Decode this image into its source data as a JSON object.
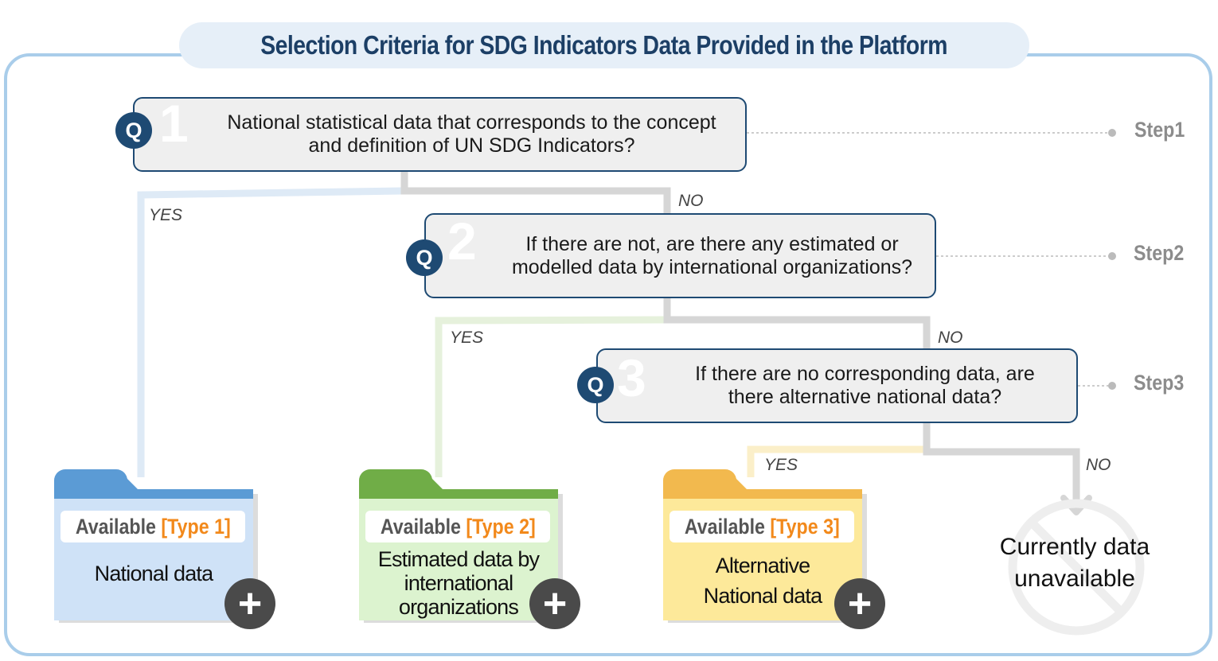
{
  "title": "Selection Criteria for SDG Indicators Data Provided in the Platform",
  "colors": {
    "frame": "#a9cdea",
    "title_bg": "#e6eff8",
    "title_text": "#1c3f66",
    "question_border": "#1e4a73",
    "type1": "#5b9bd5",
    "type2": "#70ad47",
    "type3": "#f2b94e",
    "accent": "#f2891b"
  },
  "questions": [
    {
      "badge": "Q",
      "number": "1",
      "text": "National statistical data that corresponds to the concept and definition of UN SDG Indicators?",
      "step": "Step1"
    },
    {
      "badge": "Q",
      "number": "2",
      "text": "If there are not, are there any estimated or modelled data by international organizations?",
      "step": "Step2"
    },
    {
      "badge": "Q",
      "number": "3",
      "text": "If there are no corresponding data, are there alternative national data?",
      "step": "Step3"
    }
  ],
  "branches": {
    "yes": "YES",
    "no": "NO"
  },
  "outcomes": [
    {
      "available": "Available",
      "type": "[Type 1]",
      "description": "National data",
      "icon": "plus-icon"
    },
    {
      "available": "Available",
      "type": "[Type 2]",
      "description": "Estimated data by international organizations",
      "icon": "plus-icon"
    },
    {
      "available": "Available",
      "type": "[Type 3]",
      "description": "Alternative National data",
      "icon": "plus-icon"
    }
  ],
  "unavailable": {
    "text": "Currently data unavailable",
    "icon": "prohibited-icon"
  }
}
